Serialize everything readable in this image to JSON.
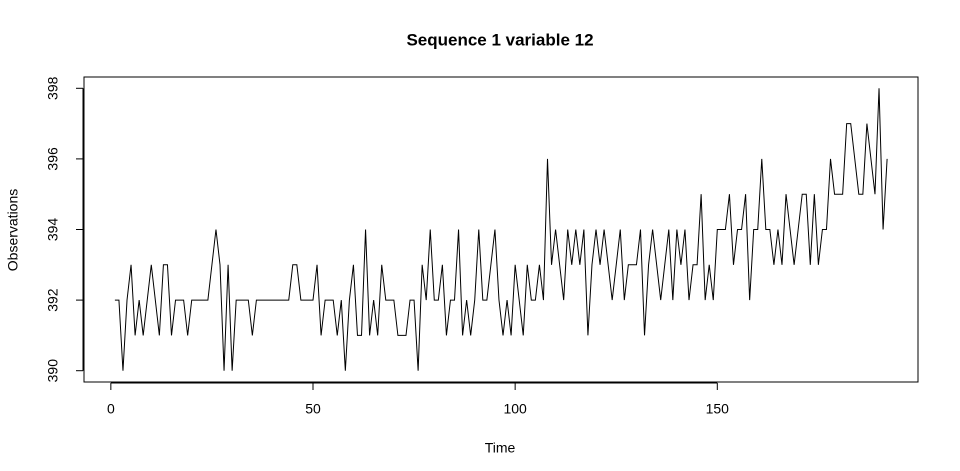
{
  "chart_data": {
    "type": "line",
    "title": "Sequence  1  variable  12",
    "x_label": "Time",
    "y_label": "Observations",
    "color": "#000000",
    "x": [
      1,
      2,
      3,
      4,
      5,
      6,
      7,
      8,
      9,
      10,
      11,
      12,
      13,
      14,
      15,
      16,
      17,
      18,
      19,
      20,
      21,
      22,
      23,
      24,
      25,
      26,
      27,
      28,
      29,
      30,
      31,
      32,
      33,
      34,
      35,
      36,
      37,
      38,
      39,
      40,
      41,
      42,
      43,
      44,
      45,
      46,
      47,
      48,
      49,
      50,
      51,
      52,
      53,
      54,
      55,
      56,
      57,
      58,
      59,
      60,
      61,
      62,
      63,
      64,
      65,
      66,
      67,
      68,
      69,
      70,
      71,
      72,
      73,
      74,
      75,
      76,
      77,
      78,
      79,
      80,
      81,
      82,
      83,
      84,
      85,
      86,
      87,
      88,
      89,
      90,
      91,
      92,
      93,
      94,
      95,
      96,
      97,
      98,
      99,
      100,
      101,
      102,
      103,
      104,
      105,
      106,
      107,
      108,
      109,
      110,
      111,
      112,
      113,
      114,
      115,
      116,
      117,
      118,
      119,
      120,
      121,
      122,
      123,
      124,
      125,
      126,
      127,
      128,
      129,
      130,
      131,
      132,
      133,
      134,
      135,
      136,
      137,
      138,
      139,
      140,
      141,
      142,
      143,
      144,
      145,
      146,
      147,
      148,
      149,
      150,
      151,
      152,
      153,
      154,
      155,
      156,
      157,
      158,
      159,
      160,
      161,
      162,
      163,
      164,
      165,
      166,
      167,
      168,
      169,
      170,
      171,
      172,
      173,
      174,
      175,
      176,
      177,
      178,
      179,
      180,
      181,
      182,
      183,
      184,
      185,
      186,
      187,
      188,
      189,
      190,
      191,
      192
    ],
    "values": [
      392,
      392,
      390,
      392,
      393,
      391,
      392,
      391,
      392,
      393,
      392,
      391,
      393,
      393,
      391,
      392,
      392,
      392,
      391,
      392,
      392,
      392,
      392,
      392,
      393,
      394,
      393,
      390,
      393,
      390,
      392,
      392,
      392,
      392,
      391,
      392,
      392,
      392,
      392,
      392,
      392,
      392,
      392,
      392,
      393,
      393,
      392,
      392,
      392,
      392,
      393,
      391,
      392,
      392,
      392,
      391,
      392,
      390,
      392,
      393,
      391,
      391,
      394,
      391,
      392,
      391,
      393,
      392,
      392,
      392,
      391,
      391,
      391,
      392,
      392,
      390,
      393,
      392,
      394,
      392,
      392,
      393,
      391,
      392,
      392,
      394,
      391,
      392,
      391,
      392,
      394,
      392,
      392,
      393,
      394,
      392,
      391,
      392,
      391,
      393,
      392,
      391,
      393,
      392,
      392,
      393,
      392,
      396,
      393,
      394,
      393,
      392,
      394,
      393,
      394,
      393,
      394,
      391,
      393,
      394,
      393,
      394,
      393,
      392,
      393,
      394,
      392,
      393,
      393,
      393,
      394,
      391,
      393,
      394,
      393,
      392,
      393,
      394,
      392,
      394,
      393,
      394,
      392,
      393,
      393,
      395,
      392,
      393,
      392,
      394,
      394,
      394,
      395,
      393,
      394,
      394,
      395,
      392,
      394,
      394,
      396,
      394,
      394,
      393,
      394,
      393,
      395,
      394,
      393,
      394,
      395,
      395,
      393,
      395,
      393,
      394,
      394,
      396,
      395,
      395,
      395,
      397,
      397,
      396,
      395,
      395,
      397,
      396,
      395,
      398,
      394,
      396
    ],
    "xlim": [
      -6.64,
      199.64
    ],
    "ylim": [
      389.68,
      398.32
    ],
    "xticks": [
      0,
      50,
      100,
      150
    ],
    "yticks": [
      390,
      392,
      394,
      396,
      398
    ]
  }
}
